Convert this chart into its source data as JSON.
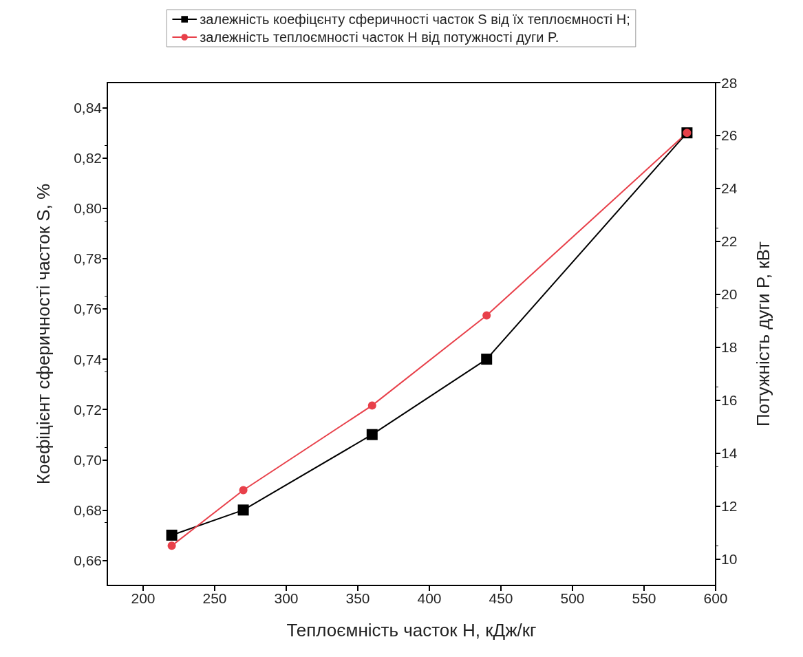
{
  "chart_data": {
    "type": "line",
    "xlabel": "Теплоємність часток H, кДж/кг",
    "ylabel": "Коефіцієнт сферичності часток S, %",
    "y2label": "Потужність дуги P, кВт",
    "x": [
      220,
      270,
      360,
      440,
      580
    ],
    "series": [
      {
        "name": "залежність коефіцєнту сферичності часток S від їх теплоємності H;",
        "color": "#000000",
        "marker": "square",
        "values": [
          0.67,
          0.68,
          0.71,
          0.74,
          0.83
        ]
      },
      {
        "name": "залежність теплоємності часток H від потужності дуги P.",
        "color": "#e8404a",
        "marker": "circle",
        "axis": "y2",
        "values": [
          10.5,
          12.6,
          15.8,
          19.2,
          26.1
        ]
      }
    ],
    "xlim": [
      175,
      600
    ],
    "xticks": [
      200,
      250,
      300,
      350,
      400,
      450,
      500,
      550,
      600
    ],
    "ylim": [
      0.65,
      0.85
    ],
    "yticks": [
      {
        "value": 0.66,
        "label": "0,66"
      },
      {
        "value": 0.68,
        "label": "0,68"
      },
      {
        "value": 0.7,
        "label": "0,70"
      },
      {
        "value": 0.72,
        "label": "0,72"
      },
      {
        "value": 0.74,
        "label": "0,74"
      },
      {
        "value": 0.76,
        "label": "0,76"
      },
      {
        "value": 0.78,
        "label": "0,78"
      },
      {
        "value": 0.8,
        "label": "0,80"
      },
      {
        "value": 0.82,
        "label": "0,82"
      },
      {
        "value": 0.84,
        "label": "0,84"
      }
    ],
    "y2lim": [
      9,
      28
    ],
    "y2ticks": [
      10,
      12,
      14,
      16,
      18,
      20,
      22,
      24,
      26,
      28
    ],
    "grid": false,
    "legend": "top",
    "line_style": "solid"
  }
}
